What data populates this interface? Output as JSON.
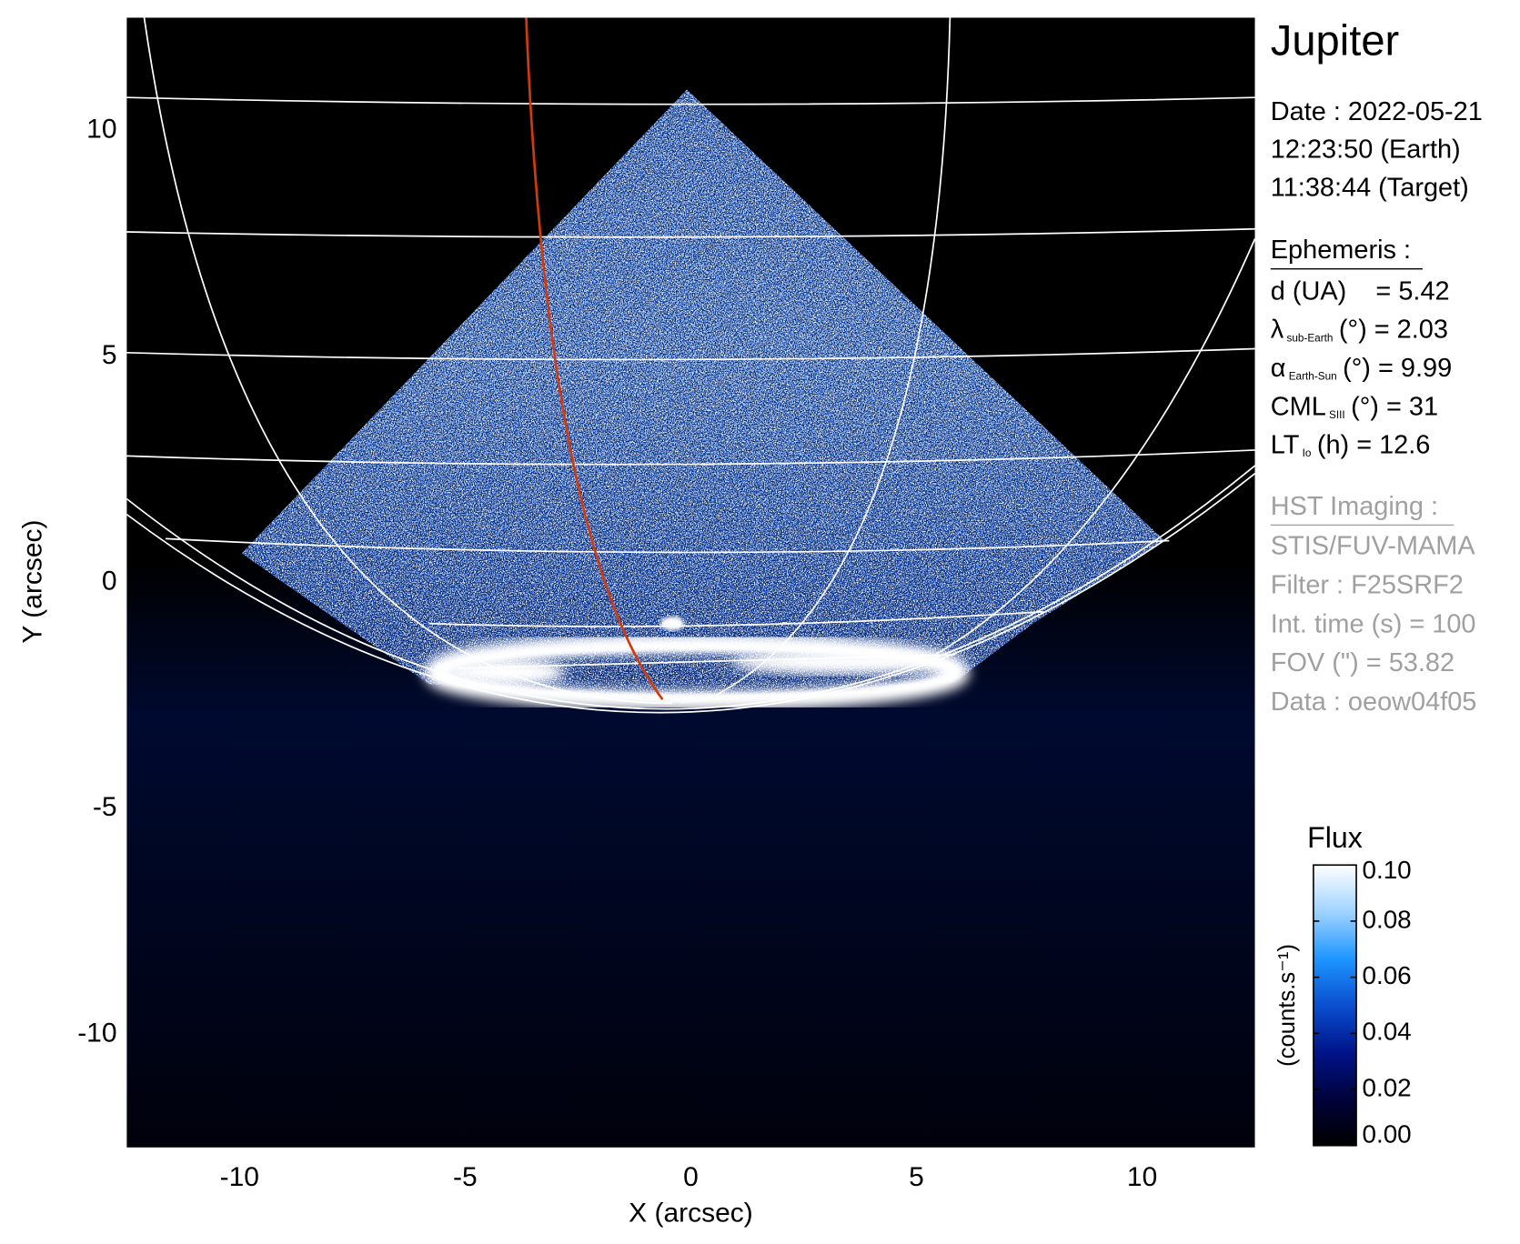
{
  "chart_data": {
    "type": "image",
    "title": "Jupiter",
    "x_label": "X (arcsec)",
    "y_label": "Y (arcsec)",
    "xlim": [
      -12.5,
      12.5
    ],
    "ylim": [
      -12.5,
      12.5
    ],
    "xticks": [
      -10,
      -5,
      0,
      5,
      10
    ],
    "yticks": [
      -10,
      -5,
      0,
      5,
      10
    ],
    "colorbar": {
      "title": "Flux",
      "units": "(counts.s⁻¹)",
      "clim": [
        0,
        0.1
      ],
      "ticks": [
        {
          "value": 0,
          "label": "0.00"
        },
        {
          "value": 0.02,
          "label": "0.02"
        },
        {
          "value": 0.04,
          "label": "0.04"
        },
        {
          "value": 0.06,
          "label": "0.06"
        },
        {
          "value": 0.08,
          "label": "0.08"
        },
        {
          "value": 0.1,
          "label": "0.10"
        }
      ],
      "colormap": [
        "#000000",
        "#00023a",
        "#00148a",
        "#0a4fd0",
        "#1e96ff",
        "#9fd3ff",
        "#ffffff"
      ]
    },
    "info": {
      "date": [
        "Date : 2022-05-21",
        "12:23:50 (Earth)",
        "11:38:44 (Target)"
      ],
      "ephemeris_title": "Ephemeris :",
      "ephemeris": [
        {
          "label": "d (UA)",
          "value": "= 5.42"
        },
        {
          "label": "λ",
          "sub": "sub-Earth",
          "value": "(°) = 2.03"
        },
        {
          "label": "α",
          "sub": "Earth-Sun",
          "value": "(°) = 9.99"
        },
        {
          "label": "CML",
          "sub": "SIII",
          "value": "(°) = 31"
        },
        {
          "label": "LT",
          "sub": "Io",
          "value": "(h) = 12.6"
        }
      ],
      "imaging_title": "HST Imaging :",
      "imaging": [
        "STIS/FUV-MAMA",
        "Filter : F25SRF2",
        "Int. time (s) = 100",
        "FOV (\") = 53.82",
        "Data : oeow04f05"
      ]
    }
  }
}
